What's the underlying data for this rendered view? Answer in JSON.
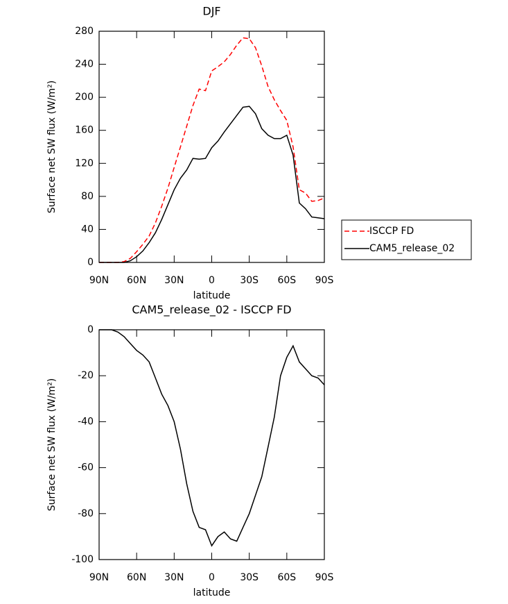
{
  "chart_data": [
    {
      "type": "line",
      "title": "DJF",
      "xlabel": "latitude",
      "ylabel": "Surface net SW flux (W/m²)",
      "x": [
        90,
        85,
        80,
        75,
        70,
        65,
        60,
        55,
        50,
        45,
        40,
        35,
        30,
        25,
        20,
        15,
        10,
        5,
        0,
        -5,
        -10,
        -15,
        -20,
        -25,
        -30,
        -35,
        -40,
        -45,
        -50,
        -55,
        -60,
        -65,
        -70,
        -75,
        -80,
        -85,
        -90
      ],
      "series": [
        {
          "name": "ISCCP FD",
          "color": "#ff0000",
          "line_style": "dashed",
          "values": [
            0,
            0,
            0,
            0,
            1,
            5,
            13,
            22,
            32,
            48,
            68,
            90,
            115,
            140,
            165,
            190,
            210,
            208,
            232,
            237,
            243,
            252,
            263,
            272,
            271,
            260,
            238,
            213,
            197,
            184,
            172,
            140,
            88,
            84,
            74,
            75,
            78
          ]
        },
        {
          "name": "CAM5_release_02",
          "color": "#000000",
          "line_style": "solid",
          "values": [
            0,
            0,
            0,
            0,
            0,
            2,
            7,
            14,
            24,
            36,
            52,
            70,
            88,
            102,
            112,
            126,
            125,
            126,
            139,
            147,
            158,
            168,
            178,
            188,
            189,
            180,
            162,
            154,
            150,
            150,
            154,
            130,
            72,
            65,
            55,
            54,
            53
          ]
        }
      ],
      "xlim": [
        90,
        -90
      ],
      "xticks": [
        {
          "value": 90,
          "label": "90N"
        },
        {
          "value": 60,
          "label": "60N"
        },
        {
          "value": 30,
          "label": "30N"
        },
        0,
        {
          "value": -30,
          "label": "30S"
        },
        {
          "value": -60,
          "label": "60S"
        },
        {
          "value": -90,
          "label": "90S"
        }
      ],
      "ylim": [
        0,
        280
      ],
      "yticks": [
        0,
        40,
        80,
        120,
        160,
        200,
        240,
        280
      ],
      "legend": "right"
    },
    {
      "type": "line",
      "title": "CAM5_release_02 - ISCCP FD",
      "xlabel": "latitude",
      "ylabel": "Surface net SW flux (W/m²)",
      "x": [
        90,
        85,
        80,
        75,
        70,
        65,
        60,
        55,
        50,
        45,
        40,
        35,
        30,
        25,
        20,
        15,
        10,
        5,
        0,
        -5,
        -10,
        -15,
        -20,
        -25,
        -30,
        -35,
        -40,
        -45,
        -50,
        -55,
        -60,
        -65,
        -70,
        -75,
        -80,
        -85,
        -90
      ],
      "series": [
        {
          "color": "#000000",
          "line_style": "solid",
          "values": [
            0,
            0,
            0,
            -1,
            -3,
            -6,
            -9,
            -11,
            -14,
            -21,
            -28,
            -33,
            -40,
            -52,
            -67,
            -79,
            -86,
            -87,
            -94,
            -90,
            -88,
            -91,
            -92,
            -86,
            -80,
            -72,
            -64,
            -51,
            -38,
            -20,
            -12,
            -7,
            -14,
            -17,
            -20,
            -21,
            -24
          ]
        }
      ],
      "xlim": [
        90,
        -90
      ],
      "xticks": [
        {
          "value": 90,
          "label": "90N"
        },
        {
          "value": 60,
          "label": "60N"
        },
        {
          "value": 30,
          "label": "30N"
        },
        0,
        {
          "value": -30,
          "label": "30S"
        },
        {
          "value": -60,
          "label": "60S"
        },
        {
          "value": -90,
          "label": "90S"
        }
      ],
      "ylim": [
        -100,
        0
      ],
      "yticks": [
        -100,
        -80,
        -60,
        -40,
        -20,
        0
      ]
    }
  ]
}
